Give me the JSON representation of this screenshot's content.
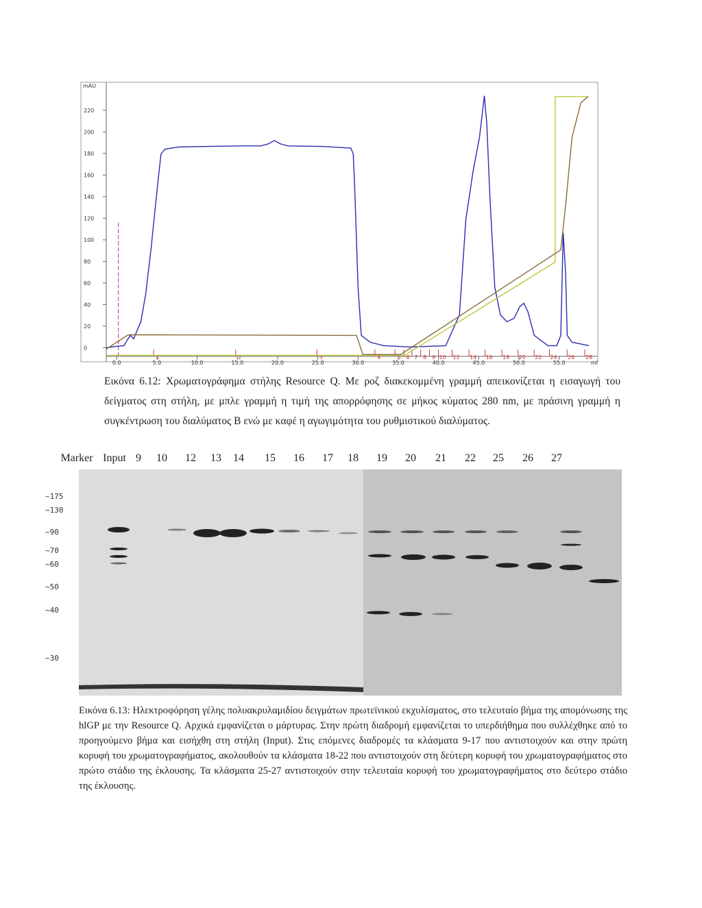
{
  "chart_data": {
    "type": "line",
    "y_label": "mAU",
    "x_label": "ml",
    "xlim": [
      -1.3,
      59.8
    ],
    "ylim": [
      -8,
      246
    ],
    "xticks": [
      {
        "value": 0,
        "label": "0.0"
      },
      {
        "value": 5,
        "label": "5.0"
      },
      {
        "value": 10,
        "label": "10.0"
      },
      {
        "value": 15,
        "label": "15.0"
      },
      {
        "value": 20,
        "label": "20.0"
      },
      {
        "value": 25,
        "label": "25.0"
      },
      {
        "value": 30,
        "label": "30.0"
      },
      {
        "value": 35,
        "label": "35.0"
      },
      {
        "value": 40,
        "label": "40.0"
      },
      {
        "value": 45,
        "label": "45.0"
      },
      {
        "value": 50,
        "label": "50.0"
      },
      {
        "value": 55,
        "label": "55.0"
      }
    ],
    "yticks": [
      0,
      20,
      40,
      60,
      80,
      100,
      120,
      140,
      160,
      180,
      200,
      220
    ],
    "series": [
      {
        "color": "#2b2bb0",
        "x": [
          -1.3,
          0,
          0.9,
          1.3,
          1.7,
          2.1,
          3.0,
          3.6,
          4.3,
          4.9,
          5.5,
          6.0,
          7.7,
          11.1,
          15.3,
          17.9,
          18.9,
          19.6,
          20.3,
          21.3,
          25.5,
          29.1,
          29.4,
          29.6,
          30.0,
          30.4,
          31.5,
          33.2,
          36.6,
          40.9,
          42.6,
          43.4,
          44.3,
          45.1,
          45.7,
          46.0,
          46.4,
          47.0,
          47.7,
          48.5,
          49.4,
          50.1,
          50.6,
          51.1,
          51.9,
          53.6,
          54.7,
          55.2,
          55.5,
          55.8,
          56.0,
          56.6,
          58.7
        ],
        "values": [
          0,
          1.3,
          1.9,
          7,
          11.4,
          8.2,
          24.1,
          49.5,
          93.8,
          138,
          179.5,
          184,
          186,
          186.5,
          187,
          187,
          189,
          192,
          189,
          187,
          186.5,
          185,
          179.5,
          144.6,
          55.8,
          11.4,
          5.1,
          1.9,
          0.6,
          1.9,
          30.4,
          119,
          163.6,
          195.3,
          233.4,
          208,
          138,
          55.8,
          30.4,
          24.1,
          27.3,
          38,
          41.2,
          33.6,
          11.4,
          1.9,
          1.9,
          11.4,
          106.5,
          68.5,
          11.4,
          5.1,
          1.9
        ]
      },
      {
        "color": "#b8c93a",
        "x": [
          -1.3,
          35.8,
          54.5,
          54.5,
          58.6
        ],
        "values": [
          -7,
          -7,
          79.3,
          232.7,
          232.7
        ]
      },
      {
        "color": "#8a6a3a",
        "x": [
          -1.3,
          1.3,
          1.7,
          29.8,
          30.6,
          35.3,
          55.2,
          55.8,
          56.6,
          57.7,
          58.6
        ],
        "values": [
          -1.3,
          11.4,
          12,
          11.4,
          -6.3,
          -6.3,
          90.7,
          131.9,
          195.3,
          227,
          232.7
        ]
      }
    ],
    "injection": {
      "color": "#e040c0",
      "x": 0.2,
      "y": 116
    },
    "fractions": {
      "color": "#d03030",
      "labels": [
        1,
        2,
        3,
        4,
        5,
        6,
        7,
        8,
        9,
        10,
        12,
        14,
        16,
        18,
        20,
        22,
        24,
        26,
        28
      ],
      "x": [
        5.1,
        15.3,
        25.4,
        32.6,
        35.1,
        36.2,
        37.2,
        38.3,
        39.4,
        40.5,
        42.2,
        44.3,
        46.3,
        48.4,
        50.4,
        52.4,
        54.3,
        56.5,
        58.7
      ]
    }
  },
  "caption1": "Εικόνα 6.12: Χρωματογράφημα στήλης Resource Q. Με ροζ διακεκομμένη γραμμή απεικονίζεται η εισαγωγή του δείγματος στη στήλη, με μπλε γραμμή η τιμή της απορρόφησης σε μήκος κύματος 280 nm, με πράσινη γραμμή η συγκέντρωση του διαλύματος Β ενώ με καφέ η αγωγιμότητα του ρυθμιστικού διαλύματος.",
  "gel": {
    "lanes": [
      "Marker",
      "Input",
      "9",
      "10",
      "12",
      "13",
      "14",
      "15",
      "16",
      "17",
      "18",
      "19",
      "20",
      "21",
      "22",
      "25",
      "26",
      "27"
    ],
    "markers": [
      "~175",
      "~130",
      "~90",
      "~70",
      "~60",
      "~50",
      "~40",
      "~30"
    ]
  },
  "caption2": "Εικόνα 6.13: Ηλεκτροφόρηση γέλης πολυακρυλαμιδίου δειγμάτων πρωτεϊνικού εκχυλίσματος, στο τελευταίο βήμα της απομόνωσης της hlGP με την Resource Q. Αρχικά εμφανίζεται ο μάρτυρας. Στην πρώτη διαδρομή εμφανίζεται το υπερδιήθημα που συλλέχθηκε από το προηγούμενο βήμα και εισήχθη στη στήλη (Input). Στις επόμενες διαδρομές τα κλάσματα 9-17 που αντιστοιχούν και στην πρώτη κορυφή του χρωματογραφήματος, ακολουθούν τα κλάσματα 18-22 που αντιστοιχούν στη δεύτερη κορυφή του χρωματογραφήματος στο πρώτο στάδιο της έκλουσης. Τα κλάσματα 25-27 αντιστοιχούν στην τελευταία κορυφή του χρωματογραφήματος στο δεύτερο στάδιο της έκλουσης."
}
